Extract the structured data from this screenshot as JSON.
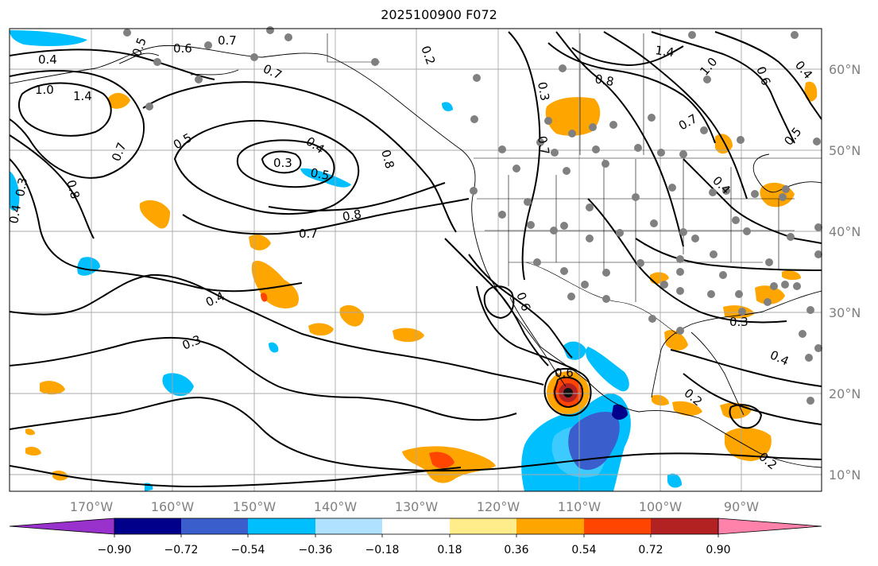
{
  "title": "2025100900 F072",
  "longitude_labels": [
    "170°W",
    "160°W",
    "150°W",
    "140°W",
    "130°W",
    "120°W",
    "110°W",
    "100°W",
    "90°W"
  ],
  "latitude_labels": [
    "60°N",
    "50°N",
    "40°N",
    "30°N",
    "20°N",
    "10°N"
  ],
  "contour_labels": [
    "0.4",
    "1.0",
    "1.4",
    "0.6",
    "0.7",
    "0.5",
    "0.7",
    "0.8",
    "0.3",
    "0.4",
    "0.4",
    "0.3",
    "0.5",
    "0.8",
    "0.7",
    "0.8",
    "0.7",
    "0.4",
    "0.3",
    "0.2",
    "0.3",
    "0.7",
    "0.5",
    "0.6",
    "0.6",
    "1.4",
    "0.8",
    "1.0",
    "0.7",
    "0.6",
    "0.4",
    "0.5",
    "0.4",
    "0.3",
    "0.4",
    "0.2",
    "0.2"
  ],
  "colorbar": {
    "tick_labels": [
      "−0.90",
      "−0.72",
      "−0.54",
      "−0.36",
      "−0.18",
      "0.18",
      "0.36",
      "0.54",
      "0.72",
      "0.90"
    ],
    "colors": [
      "#9932cc",
      "#00008b",
      "#3a5fcd",
      "#00bfff",
      "#b0e2ff",
      "#ffffff",
      "#ffec8b",
      "#ffa500",
      "#ff4500",
      "#b22222",
      "#ff82ab"
    ]
  }
}
